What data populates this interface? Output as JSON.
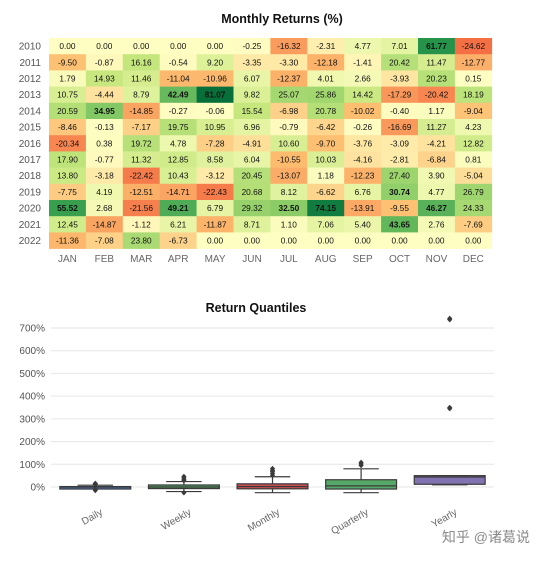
{
  "chart_data": [
    {
      "type": "heatmap",
      "title": "Monthly Returns (%)",
      "columns": [
        "JAN",
        "FEB",
        "MAR",
        "APR",
        "MAY",
        "JUN",
        "JUL",
        "AUG",
        "SEP",
        "OCT",
        "NOV",
        "DEC"
      ],
      "rows": [
        "2010",
        "2011",
        "2012",
        "2013",
        "2014",
        "2015",
        "2016",
        "2017",
        "2018",
        "2019",
        "2020",
        "2021",
        "2022"
      ],
      "values": [
        [
          "0.00",
          "0.00",
          "0.00",
          "0.00",
          "0.00",
          "-0.25",
          "-16.32",
          "-2.31",
          "4.77",
          "7.01",
          "61.77",
          "-24.62"
        ],
        [
          "-9.50",
          "-0.87",
          "16.16",
          "-0.54",
          "9.20",
          "-3.35",
          "-3.30",
          "-12.18",
          "-1.41",
          "20.42",
          "11.47",
          "-12.77"
        ],
        [
          "1.79",
          "14.93",
          "11.46",
          "-11.04",
          "-10.96",
          "6.07",
          "-12.37",
          "4.01",
          "2.66",
          "-3.93",
          "20.23",
          "0.15"
        ],
        [
          "10.75",
          "-4.44",
          "8.79",
          "42.49",
          "81.07",
          "9.82",
          "25.07",
          "25.86",
          "14.42",
          "-17.29",
          "-20.42",
          "18.19"
        ],
        [
          "20.59",
          "34.95",
          "-14.85",
          "-0.27",
          "-0.06",
          "15.54",
          "-6.98",
          "20.78",
          "-10.02",
          "-0.40",
          "1.17",
          "-9.04"
        ],
        [
          "-8.46",
          "-0.13",
          "-7.17",
          "19.75",
          "10.95",
          "6.96",
          "-0.79",
          "-6.42",
          "-0.26",
          "-16.69",
          "11.27",
          "4.23"
        ],
        [
          "-20.34",
          "0.38",
          "19.72",
          "4.78",
          "-7.28",
          "-4.91",
          "10.60",
          "-9.70",
          "-3.76",
          "-3.09",
          "-4.21",
          "12.82"
        ],
        [
          "17.90",
          "-0.77",
          "11.32",
          "12.85",
          "8.58",
          "6.04",
          "-10.55",
          "10.03",
          "-4.16",
          "-2.81",
          "-6.84",
          "0.81"
        ],
        [
          "13.80",
          "-3.18",
          "-22.42",
          "10.43",
          "-3.12",
          "20.45",
          "-13.07",
          "1.18",
          "-12.23",
          "27.40",
          "3.90",
          "-5.04"
        ],
        [
          "-7.75",
          "4.19",
          "-12.51",
          "-14.71",
          "-22.43",
          "20.68",
          "8.12",
          "-6.62",
          "6.76",
          "30.74",
          "4.77",
          "26.79"
        ],
        [
          "55.52",
          "2.68",
          "-21.56",
          "49.21",
          "6.79",
          "29.32",
          "32.50",
          "74.15",
          "-13.91",
          "-9.55",
          "46.27",
          "24.33"
        ],
        [
          "12.45",
          "-14.87",
          "-1.12",
          "6.21",
          "-11.87",
          "8.71",
          "1.10",
          "7.06",
          "5.40",
          "43.65",
          "2.76",
          "-7.69"
        ],
        [
          "-11.36",
          "-7.08",
          "23.80",
          "-6.73",
          "0.00",
          "0.00",
          "0.00",
          "0.00",
          "0.00",
          "0.00",
          "0.00",
          "0.00"
        ]
      ]
    },
    {
      "type": "box",
      "title": "Return Quantiles",
      "categories": [
        "Daily",
        "Weekly",
        "Monthly",
        "Quarterly",
        "Yearly"
      ],
      "colors": [
        "#4c72b0",
        "#55a868",
        "#c44e52",
        "#55a868",
        "#8172b2"
      ],
      "ylim": [
        -40,
        760
      ],
      "yticks": [
        0,
        100,
        200,
        300,
        400,
        500,
        600,
        700
      ],
      "ytick_labels": [
        "0%",
        "100%",
        "200%",
        "300%",
        "400%",
        "500%",
        "600%",
        "700%"
      ],
      "boxes": [
        {
          "min": -8,
          "q1": -2,
          "median": 0,
          "q3": 2,
          "max": 8,
          "fliers": [
            -15,
            -12,
            -10,
            10,
            12,
            14,
            16
          ]
        },
        {
          "min": -20,
          "q1": -7,
          "median": 0,
          "q3": 9,
          "max": 24,
          "fliers": [
            -25,
            28,
            34,
            40,
            46
          ]
        },
        {
          "min": -25,
          "q1": -8,
          "median": 2,
          "q3": 14,
          "max": 45,
          "fliers": [
            52,
            60,
            68,
            74,
            81
          ]
        },
        {
          "min": -25,
          "q1": -9,
          "median": 5,
          "q3": 32,
          "max": 80,
          "fliers": [
            95,
            102,
            108
          ]
        },
        {
          "min": 10,
          "q1": 12,
          "median": 44,
          "q3": 50,
          "max": 50,
          "fliers": [
            345,
            350,
            737,
            742
          ]
        }
      ]
    }
  ],
  "watermark": "知乎 @诸葛说"
}
